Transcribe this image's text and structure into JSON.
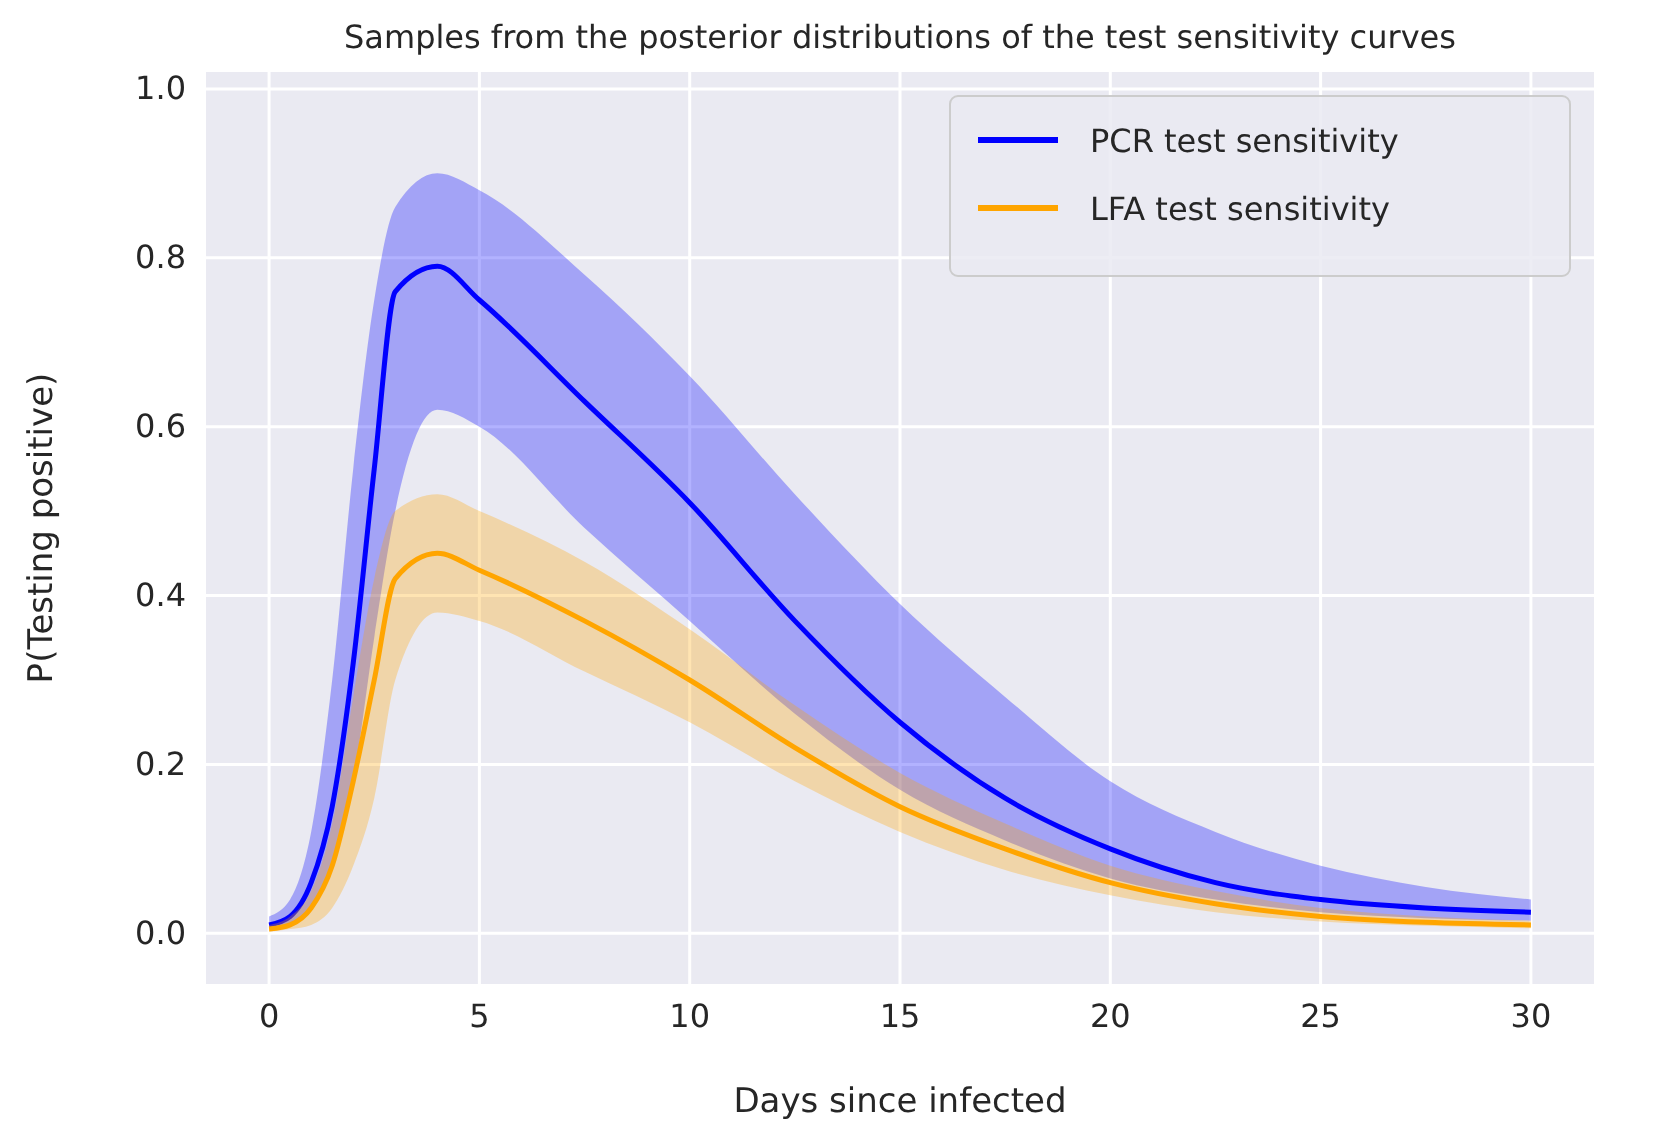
{
  "chart_data": {
    "type": "line",
    "title": "Samples from the posterior distributions of the test sensitivity curves",
    "xlabel": "Days since infected",
    "ylabel": "P(Testing positive)",
    "x": [
      0,
      0.5,
      1,
      1.5,
      2,
      2.5,
      3,
      4,
      5,
      7.5,
      10,
      12.5,
      15,
      17.5,
      20,
      22.5,
      25,
      27.5,
      30
    ],
    "series": [
      {
        "name": "PCR test sensitivity",
        "color": "#0000ff",
        "values": [
          0.01,
          0.02,
          0.06,
          0.15,
          0.32,
          0.55,
          0.76,
          0.79,
          0.75,
          0.63,
          0.51,
          0.37,
          0.25,
          0.16,
          0.1,
          0.06,
          0.04,
          0.03,
          0.025
        ],
        "lower": [
          0.005,
          0.01,
          0.03,
          0.08,
          0.18,
          0.35,
          0.5,
          0.62,
          0.6,
          0.48,
          0.37,
          0.26,
          0.17,
          0.11,
          0.065,
          0.04,
          0.025,
          0.018,
          0.015
        ],
        "upper": [
          0.02,
          0.04,
          0.12,
          0.3,
          0.55,
          0.75,
          0.86,
          0.9,
          0.88,
          0.78,
          0.66,
          0.52,
          0.39,
          0.28,
          0.18,
          0.12,
          0.08,
          0.055,
          0.04
        ]
      },
      {
        "name": "LFA test sensitivity",
        "color": "#ffa500",
        "values": [
          0.005,
          0.01,
          0.03,
          0.08,
          0.18,
          0.3,
          0.42,
          0.45,
          0.43,
          0.37,
          0.3,
          0.22,
          0.15,
          0.1,
          0.06,
          0.035,
          0.02,
          0.013,
          0.01
        ],
        "lower": [
          0.002,
          0.005,
          0.01,
          0.03,
          0.08,
          0.16,
          0.3,
          0.38,
          0.37,
          0.31,
          0.25,
          0.18,
          0.12,
          0.075,
          0.045,
          0.025,
          0.014,
          0.009,
          0.006
        ],
        "upper": [
          0.01,
          0.02,
          0.05,
          0.13,
          0.28,
          0.42,
          0.5,
          0.52,
          0.5,
          0.44,
          0.36,
          0.27,
          0.19,
          0.13,
          0.08,
          0.05,
          0.03,
          0.02,
          0.015
        ]
      }
    ],
    "xlim": [
      -1.5,
      31.5
    ],
    "xticks": [
      0,
      5,
      10,
      15,
      20,
      25,
      30
    ],
    "ylim": [
      -0.06,
      1.02
    ],
    "yticks": [
      {
        "value": 0,
        "label": "0.0"
      },
      {
        "value": 0.2,
        "label": "0.2"
      },
      {
        "value": 0.4,
        "label": "0.4"
      },
      {
        "value": 0.6,
        "label": "0.6"
      },
      {
        "value": 0.8,
        "label": "0.8"
      },
      {
        "value": 1,
        "label": "1.0"
      }
    ],
    "grid": true,
    "legend": "top right",
    "line_style": "solid",
    "marker": "none"
  }
}
